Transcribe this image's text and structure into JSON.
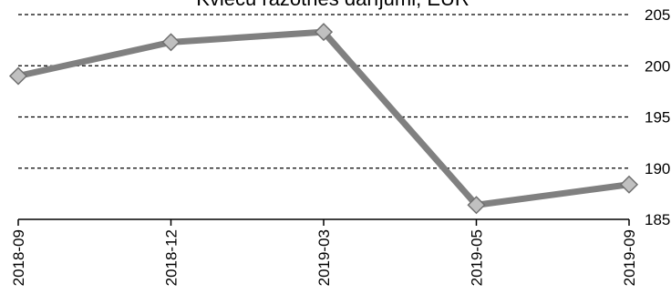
{
  "chart_data": {
    "type": "line",
    "title": "Kvieču ražotnes darījumi, EUR",
    "categories": [
      "2018-09",
      "2018-12",
      "2019-03",
      "2019-05",
      "2019-09"
    ],
    "series": [
      {
        "values": [
          199.0,
          202.3,
          203.3,
          186.4,
          188.4
        ]
      }
    ],
    "y_ticks": [
      "185",
      "190",
      "195",
      "200",
      "205"
    ],
    "ylim": [
      185,
      205
    ],
    "grid": true,
    "line_color": "#808080",
    "marker_fill": "#c0c0c0",
    "marker": "diamond"
  }
}
